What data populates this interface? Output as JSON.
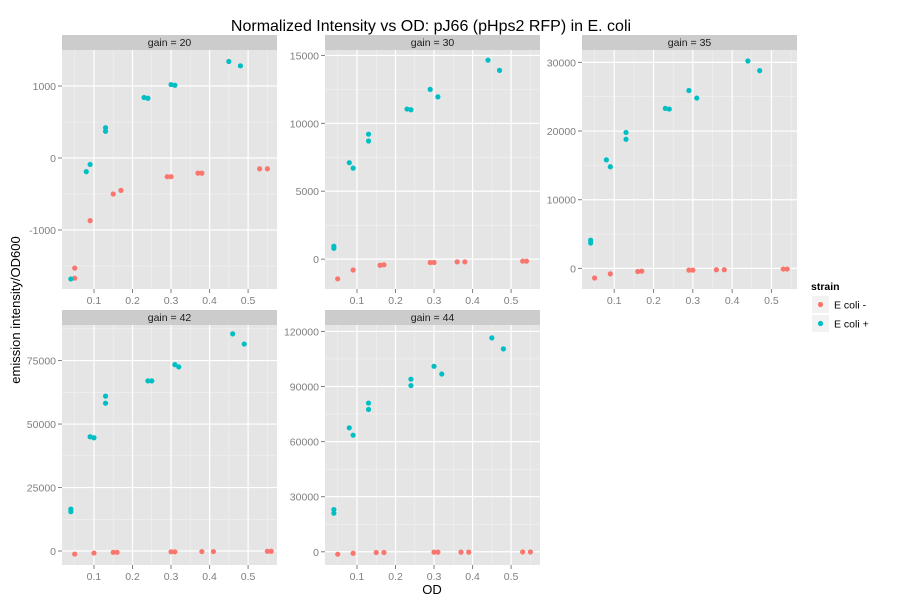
{
  "chart_data": {
    "type": "scatter",
    "title": "Normalized Intensity vs OD: pJ66 (pHps2 RFP) in E. coli",
    "xlabel": "OD",
    "ylabel": "emission intensity/OD600",
    "grid": true,
    "legend": {
      "title": "strain",
      "placement": "right",
      "entries": [
        {
          "label": "E coli -",
          "color": "#F8766D"
        },
        {
          "label": "E coli +",
          "color": "#00BFC4"
        }
      ]
    },
    "x_ticks": [
      0.1,
      0.2,
      0.3,
      0.4,
      0.5
    ],
    "x_tick_labels": [
      "0.1",
      "0.2",
      "0.3",
      "0.4",
      "0.5"
    ],
    "panels": [
      {
        "strip": "gain =  20",
        "xlim": [
          0.017,
          0.575
        ],
        "ylim": [
          -1820,
          1500
        ],
        "y_ticks": [
          -1000,
          0,
          1000
        ],
        "y_tick_labels": [
          "-1000",
          "0",
          "1000"
        ],
        "series": [
          {
            "name": "E coli -",
            "x": [
              0.05,
              0.05,
              0.09,
              0.15,
              0.17,
              0.29,
              0.3,
              0.37,
              0.38,
              0.53,
              0.55
            ],
            "y": [
              -1530,
              -1670,
              -870,
              -500,
              -450,
              -260,
              -260,
              -210,
              -210,
              -150,
              -150
            ]
          },
          {
            "name": "E coli +",
            "x": [
              0.04,
              0.08,
              0.09,
              0.13,
              0.13,
              0.23,
              0.24,
              0.3,
              0.31,
              0.45,
              0.48
            ],
            "y": [
              -1680,
              -190,
              -90,
              420,
              370,
              840,
              830,
              1020,
              1010,
              1340,
              1280
            ]
          }
        ]
      },
      {
        "strip": "gain =  30",
        "xlim": [
          0.017,
          0.575
        ],
        "ylim": [
          -2200,
          15400
        ],
        "y_ticks": [
          0,
          5000,
          10000,
          15000
        ],
        "y_tick_labels": [
          "0",
          "5000",
          "10000",
          "15000"
        ],
        "series": [
          {
            "name": "E coli -",
            "x": [
              0.05,
              0.09,
              0.16,
              0.17,
              0.29,
              0.3,
              0.36,
              0.38,
              0.53,
              0.54
            ],
            "y": [
              -1450,
              -800,
              -450,
              -420,
              -250,
              -250,
              -200,
              -200,
              -150,
              -150
            ]
          },
          {
            "name": "E coli +",
            "x": [
              0.04,
              0.04,
              0.08,
              0.09,
              0.13,
              0.13,
              0.23,
              0.24,
              0.29,
              0.31,
              0.44,
              0.47
            ],
            "y": [
              950,
              800,
              7100,
              6700,
              9200,
              8700,
              11050,
              11000,
              12500,
              11950,
              14650,
              13900
            ]
          }
        ]
      },
      {
        "strip": "gain =  35",
        "xlim": [
          0.018,
          0.565
        ],
        "ylim": [
          -3000,
          31800
        ],
        "y_ticks": [
          0,
          10000,
          20000,
          30000
        ],
        "y_tick_labels": [
          "0",
          "10000",
          "20000",
          "30000"
        ],
        "series": [
          {
            "name": "E coli -",
            "x": [
              0.05,
              0.09,
              0.16,
              0.17,
              0.29,
              0.3,
              0.36,
              0.38,
              0.53,
              0.54
            ],
            "y": [
              -1400,
              -800,
              -450,
              -400,
              -250,
              -250,
              -200,
              -200,
              -100,
              -100
            ]
          },
          {
            "name": "E coli +",
            "x": [
              0.04,
              0.04,
              0.08,
              0.09,
              0.13,
              0.13,
              0.23,
              0.24,
              0.29,
              0.31,
              0.44,
              0.47
            ],
            "y": [
              4100,
              3700,
              15800,
              14800,
              19800,
              18800,
              23300,
              23200,
              25900,
              24800,
              30200,
              28800
            ]
          }
        ]
      },
      {
        "strip": "gain =  42",
        "xlim": [
          0.017,
          0.575
        ],
        "ylim": [
          -5500,
          89000
        ],
        "y_ticks": [
          0,
          25000,
          50000,
          75000
        ],
        "y_tick_labels": [
          "0",
          "25000",
          "50000",
          "75000"
        ],
        "series": [
          {
            "name": "E coli -",
            "x": [
              0.05,
              0.1,
              0.15,
              0.16,
              0.3,
              0.31,
              0.38,
              0.41,
              0.55,
              0.56
            ],
            "y": [
              -1200,
              -800,
              -500,
              -500,
              -300,
              -300,
              -200,
              -200,
              -100,
              -100
            ]
          },
          {
            "name": "E coli +",
            "x": [
              0.04,
              0.04,
              0.09,
              0.1,
              0.13,
              0.13,
              0.24,
              0.25,
              0.31,
              0.32,
              0.46,
              0.49
            ],
            "y": [
              16500,
              15500,
              45000,
              44600,
              61000,
              58200,
              67000,
              67000,
              73400,
              72500,
              85500,
              81500
            ]
          }
        ]
      },
      {
        "strip": "gain =  44",
        "xlim": [
          0.017,
          0.575
        ],
        "ylim": [
          -7200,
          123500
        ],
        "y_ticks": [
          0,
          30000,
          60000,
          90000,
          120000
        ],
        "y_tick_labels": [
          "0",
          "30000",
          "60000",
          "90000",
          "120000"
        ],
        "series": [
          {
            "name": "E coli -",
            "x": [
              0.05,
              0.09,
              0.15,
              0.17,
              0.3,
              0.31,
              0.37,
              0.39,
              0.53,
              0.55
            ],
            "y": [
              -1300,
              -800,
              -400,
              -400,
              -200,
              -200,
              -200,
              -200,
              -100,
              -100
            ]
          },
          {
            "name": "E coli +",
            "x": [
              0.04,
              0.04,
              0.08,
              0.09,
              0.13,
              0.13,
              0.24,
              0.24,
              0.3,
              0.32,
              0.45,
              0.48
            ],
            "y": [
              23000,
              21000,
              67500,
              63500,
              81000,
              77500,
              94000,
              90500,
              101000,
              96800,
              116500,
              110500
            ]
          }
        ]
      }
    ]
  }
}
